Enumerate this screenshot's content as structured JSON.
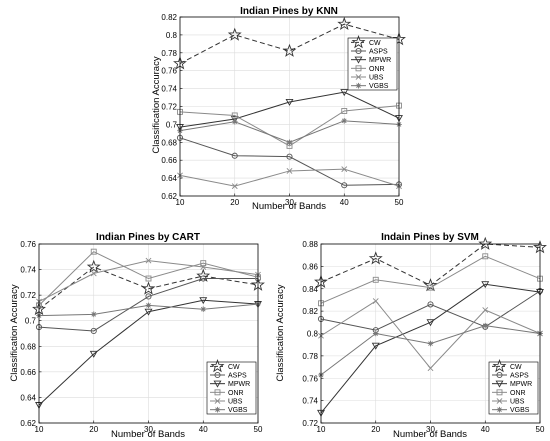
{
  "chart_data": [
    {
      "type": "line",
      "title": "Indian Pines by KNN",
      "xlabel": "Number of Bands",
      "ylabel": "Classification Accuracy",
      "x": [
        10,
        20,
        30,
        40,
        50
      ],
      "xlim": [
        10,
        50
      ],
      "ylim": [
        0.62,
        0.82
      ],
      "yticks": [
        0.62,
        0.64,
        0.66,
        0.68,
        0.7,
        0.72,
        0.74,
        0.76,
        0.78,
        0.8,
        0.82
      ],
      "yticklabels": [
        "0.62",
        "0.64",
        "0.66",
        "0.68",
        "0.7",
        "0.72",
        "0.74",
        "0.76",
        "0.78",
        "0.8",
        "0.82"
      ],
      "xticks": [
        10,
        20,
        30,
        40,
        50
      ],
      "xticklabels": [
        "10",
        "20",
        "30",
        "40",
        "50"
      ],
      "grid": true,
      "legend_position": "top-right",
      "series": [
        {
          "name": "CW",
          "marker": "star",
          "dash": "dashed",
          "values": [
            0.768,
            0.8,
            0.782,
            0.812,
            0.795
          ]
        },
        {
          "name": "ASPS",
          "marker": "circle",
          "dash": "solid",
          "values": [
            0.685,
            0.665,
            0.664,
            0.632,
            0.633
          ]
        },
        {
          "name": "MPWR",
          "marker": "triangle-down",
          "dash": "solid",
          "values": [
            0.697,
            0.706,
            0.725,
            0.736,
            0.707
          ]
        },
        {
          "name": "ONR",
          "marker": "square",
          "dash": "solid",
          "values": [
            0.714,
            0.71,
            0.676,
            0.715,
            0.721
          ]
        },
        {
          "name": "UBS",
          "marker": "x",
          "dash": "solid",
          "values": [
            0.643,
            0.631,
            0.648,
            0.65,
            0.631
          ]
        },
        {
          "name": "VGBS",
          "marker": "asterisk",
          "dash": "solid",
          "values": [
            0.693,
            0.703,
            0.68,
            0.704,
            0.7
          ]
        }
      ]
    },
    {
      "type": "line",
      "title": "Indian Pines by CART",
      "xlabel": "Number of Bands",
      "ylabel": "Classification Accuracy",
      "x": [
        10,
        20,
        30,
        40,
        50
      ],
      "xlim": [
        10,
        50
      ],
      "ylim": [
        0.62,
        0.76
      ],
      "yticks": [
        0.62,
        0.64,
        0.66,
        0.68,
        0.7,
        0.72,
        0.74,
        0.76
      ],
      "yticklabels": [
        "0.62",
        "0.64",
        "0.66",
        "0.68",
        "0.7",
        "0.72",
        "0.74",
        "0.76"
      ],
      "xticks": [
        10,
        20,
        30,
        40,
        50
      ],
      "xticklabels": [
        "10",
        "20",
        "30",
        "40",
        "50"
      ],
      "grid": true,
      "legend_position": "bottom-right",
      "series": [
        {
          "name": "CW",
          "marker": "star",
          "dash": "dashed",
          "values": [
            0.709,
            0.742,
            0.725,
            0.735,
            0.728
          ]
        },
        {
          "name": "ASPS",
          "marker": "circle",
          "dash": "solid",
          "values": [
            0.695,
            0.692,
            0.719,
            0.733,
            0.733
          ]
        },
        {
          "name": "MPWR",
          "marker": "triangle-down",
          "dash": "solid",
          "values": [
            0.634,
            0.674,
            0.707,
            0.716,
            0.713
          ]
        },
        {
          "name": "ONR",
          "marker": "square",
          "dash": "solid",
          "values": [
            0.712,
            0.754,
            0.733,
            0.745,
            0.734
          ]
        },
        {
          "name": "UBS",
          "marker": "x",
          "dash": "solid",
          "values": [
            0.715,
            0.737,
            0.747,
            0.742,
            0.736
          ]
        },
        {
          "name": "VGBS",
          "marker": "asterisk",
          "dash": "solid",
          "values": [
            0.704,
            0.705,
            0.712,
            0.709,
            0.713
          ]
        }
      ]
    },
    {
      "type": "line",
      "title": "Indain Pines by SVM",
      "xlabel": "Number of Bands",
      "ylabel": "Classification Accuracy",
      "x": [
        10,
        20,
        30,
        40,
        50
      ],
      "xlim": [
        10,
        50
      ],
      "ylim": [
        0.72,
        0.88
      ],
      "yticks": [
        0.72,
        0.74,
        0.76,
        0.78,
        0.8,
        0.82,
        0.84,
        0.86,
        0.88
      ],
      "yticklabels": [
        "0.72",
        "0.74",
        "0.76",
        "0.78",
        "0.8",
        "0.82",
        "0.84",
        "0.86",
        "0.88"
      ],
      "xticks": [
        10,
        20,
        30,
        40,
        50
      ],
      "xticklabels": [
        "10",
        "20",
        "30",
        "40",
        "50"
      ],
      "grid": true,
      "legend_position": "bottom-right",
      "series": [
        {
          "name": "CW",
          "marker": "star",
          "dash": "dashed",
          "values": [
            0.846,
            0.867,
            0.843,
            0.88,
            0.877
          ]
        },
        {
          "name": "ASPS",
          "marker": "circle",
          "dash": "solid",
          "values": [
            0.813,
            0.803,
            0.826,
            0.806,
            0.838
          ]
        },
        {
          "name": "MPWR",
          "marker": "triangle-down",
          "dash": "solid",
          "values": [
            0.729,
            0.789,
            0.81,
            0.844,
            0.837
          ]
        },
        {
          "name": "ONR",
          "marker": "square",
          "dash": "solid",
          "values": [
            0.827,
            0.848,
            0.841,
            0.869,
            0.849
          ]
        },
        {
          "name": "UBS",
          "marker": "x",
          "dash": "solid",
          "values": [
            0.798,
            0.829,
            0.769,
            0.821,
            0.8
          ]
        },
        {
          "name": "VGBS",
          "marker": "asterisk",
          "dash": "solid",
          "values": [
            0.763,
            0.8,
            0.791,
            0.807,
            0.8
          ]
        }
      ]
    }
  ],
  "colors": {
    "CW": "#333333",
    "ASPS": "#555555",
    "MPWR": "#333333",
    "ONR": "#8a8a8a",
    "UBS": "#8a8a8a",
    "VGBS": "#777777",
    "grid": "#dcdcdc",
    "axis": "#000000"
  }
}
